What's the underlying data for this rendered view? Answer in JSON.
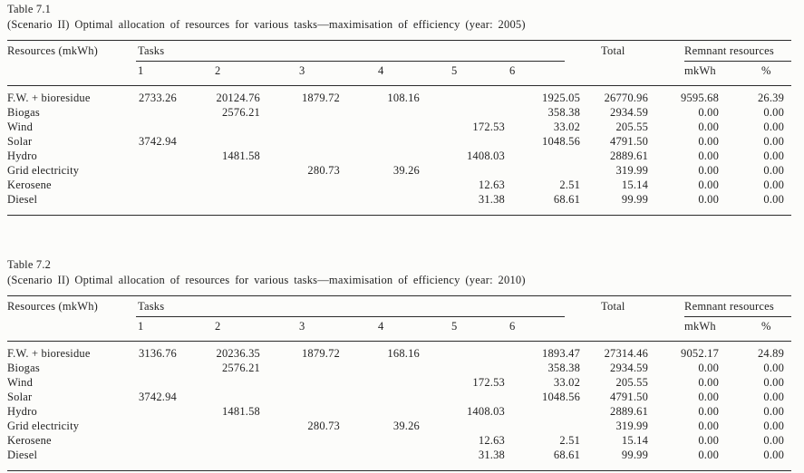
{
  "colors": {
    "ink": "#232323",
    "paper": "#fcfcfa"
  },
  "tables": [
    {
      "caption_line1": "Table 7.1",
      "caption_line2": "(Scenario II) Optimal allocation of resources for various tasks—maximisation of efficiency (year: 2005)",
      "header": {
        "resources": "Resources (mkWh)",
        "tasks_group": "Tasks",
        "task_columns": [
          "1",
          "2",
          "3",
          "4",
          "5",
          "6"
        ],
        "total": "Total",
        "remnant_group": "Remnant resources",
        "remnant_columns": [
          "mkWh",
          "%"
        ]
      },
      "rows": [
        {
          "resource": "F.W. + bioresidue",
          "tasks": [
            "2733.26",
            "20124.76",
            "1879.72",
            "108.16",
            "",
            "1925.05"
          ],
          "total": "26770.96",
          "remnant_mkwh": "9595.68",
          "remnant_pct": "26.39"
        },
        {
          "resource": "Biogas",
          "tasks": [
            "",
            "2576.21",
            "",
            "",
            "",
            "358.38"
          ],
          "total": "2934.59",
          "remnant_mkwh": "0.00",
          "remnant_pct": "0.00"
        },
        {
          "resource": "Wind",
          "tasks": [
            "",
            "",
            "",
            "",
            "172.53",
            "33.02"
          ],
          "total": "205.55",
          "remnant_mkwh": "0.00",
          "remnant_pct": "0.00"
        },
        {
          "resource": "Solar",
          "tasks": [
            "3742.94",
            "",
            "",
            "",
            "",
            "1048.56"
          ],
          "total": "4791.50",
          "remnant_mkwh": "0.00",
          "remnant_pct": "0.00"
        },
        {
          "resource": "Hydro",
          "tasks": [
            "",
            "1481.58",
            "",
            "",
            "1408.03",
            ""
          ],
          "total": "2889.61",
          "remnant_mkwh": "0.00",
          "remnant_pct": "0.00"
        },
        {
          "resource": "Grid electricity",
          "tasks": [
            "",
            "",
            "280.73",
            "39.26",
            "",
            ""
          ],
          "total": "319.99",
          "remnant_mkwh": "0.00",
          "remnant_pct": "0.00"
        },
        {
          "resource": "Kerosene",
          "tasks": [
            "",
            "",
            "",
            "",
            "12.63",
            "2.51"
          ],
          "total": "15.14",
          "remnant_mkwh": "0.00",
          "remnant_pct": "0.00"
        },
        {
          "resource": "Diesel",
          "tasks": [
            "",
            "",
            "",
            "",
            "31.38",
            "68.61"
          ],
          "total": "99.99",
          "remnant_mkwh": "0.00",
          "remnant_pct": "0.00"
        }
      ]
    },
    {
      "caption_line1": "Table 7.2",
      "caption_line2": "(Scenario II) Optimal allocation of resources for various tasks—maximisation of efficiency (year: 2010)",
      "header": {
        "resources": "Resources (mkWh)",
        "tasks_group": "Tasks",
        "task_columns": [
          "1",
          "2",
          "3",
          "4",
          "5",
          "6"
        ],
        "total": "Total",
        "remnant_group": "Remnant resources",
        "remnant_columns": [
          "mkWh",
          "%"
        ]
      },
      "rows": [
        {
          "resource": "F.W. + bioresidue",
          "tasks": [
            "3136.76",
            "20236.35",
            "1879.72",
            "168.16",
            "",
            "1893.47"
          ],
          "total": "27314.46",
          "remnant_mkwh": "9052.17",
          "remnant_pct": "24.89"
        },
        {
          "resource": "Biogas",
          "tasks": [
            "",
            "2576.21",
            "",
            "",
            "",
            "358.38"
          ],
          "total": "2934.59",
          "remnant_mkwh": "0.00",
          "remnant_pct": "0.00"
        },
        {
          "resource": "Wind",
          "tasks": [
            "",
            "",
            "",
            "",
            "172.53",
            "33.02"
          ],
          "total": "205.55",
          "remnant_mkwh": "0.00",
          "remnant_pct": "0.00"
        },
        {
          "resource": "Solar",
          "tasks": [
            "3742.94",
            "",
            "",
            "",
            "",
            "1048.56"
          ],
          "total": "4791.50",
          "remnant_mkwh": "0.00",
          "remnant_pct": "0.00"
        },
        {
          "resource": "Hydro",
          "tasks": [
            "",
            "1481.58",
            "",
            "",
            "1408.03",
            ""
          ],
          "total": "2889.61",
          "remnant_mkwh": "0.00",
          "remnant_pct": "0.00"
        },
        {
          "resource": "Grid electricity",
          "tasks": [
            "",
            "",
            "280.73",
            "39.26",
            "",
            ""
          ],
          "total": "319.99",
          "remnant_mkwh": "0.00",
          "remnant_pct": "0.00"
        },
        {
          "resource": "Kerosene",
          "tasks": [
            "",
            "",
            "",
            "",
            "12.63",
            "2.51"
          ],
          "total": "15.14",
          "remnant_mkwh": "0.00",
          "remnant_pct": "0.00"
        },
        {
          "resource": "Diesel",
          "tasks": [
            "",
            "",
            "",
            "",
            "31.38",
            "68.61"
          ],
          "total": "99.99",
          "remnant_mkwh": "0.00",
          "remnant_pct": "0.00"
        }
      ]
    }
  ]
}
